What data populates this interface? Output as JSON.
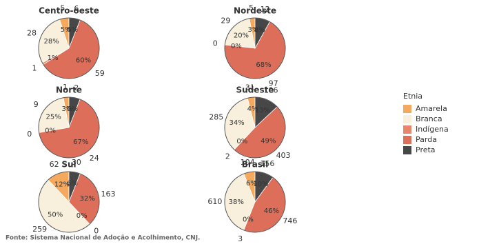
{
  "chart_data": [
    {
      "type": "pie",
      "title": "Centro-oeste",
      "categories": [
        "Amarela",
        "Branca",
        "Indígena",
        "Parda",
        "Preta"
      ],
      "colors": [
        "#f4a95e",
        "#f8f0dc",
        "#e8866c",
        "#dc6e5a",
        "#474747"
      ],
      "values": [
        5,
        28,
        1,
        60,
        6
      ],
      "value_labels": [
        "5%",
        "28%",
        "1%",
        "60%",
        "6%"
      ],
      "counts": [
        5,
        28,
        1,
        59,
        6
      ]
    },
    {
      "type": "pie",
      "title": "Nordeste",
      "categories": [
        "Amarela",
        "Branca",
        "Indígena",
        "Parda",
        "Preta"
      ],
      "colors": [
        "#f4a95e",
        "#f8f0dc",
        "#e8866c",
        "#dc6e5a",
        "#474747"
      ],
      "values": [
        3,
        20,
        0,
        68,
        8
      ],
      "value_labels": [
        "3%",
        "20%",
        "0%",
        "68%",
        "8%"
      ],
      "counts": [
        5,
        29,
        0,
        97,
        12
      ]
    },
    {
      "type": "pie",
      "title": "Norte",
      "categories": [
        "Amarela",
        "Branca",
        "Indígena",
        "Parda",
        "Preta"
      ],
      "colors": [
        "#f4a95e",
        "#f8f0dc",
        "#e8866c",
        "#dc6e5a",
        "#474747"
      ],
      "values": [
        3,
        25,
        0,
        67,
        6
      ],
      "value_labels": [
        "3%",
        "25%",
        "0%",
        "67%",
        "6%"
      ],
      "counts": [
        1,
        9,
        0,
        24,
        2
      ]
    },
    {
      "type": "pie",
      "title": "Sudeste",
      "categories": [
        "Amarela",
        "Branca",
        "Indígena",
        "Parda",
        "Preta"
      ],
      "colors": [
        "#f4a95e",
        "#f8f0dc",
        "#e8866c",
        "#dc6e5a",
        "#474747"
      ],
      "values": [
        4,
        34,
        0,
        49,
        13
      ],
      "value_labels": [
        "4%",
        "34%",
        "0%",
        "49%",
        "13%"
      ],
      "counts": [
        31,
        285,
        2,
        403,
        106
      ]
    },
    {
      "type": "pie",
      "title": "Sul",
      "categories": [
        "Amarela",
        "Branca",
        "Indígena",
        "Parda",
        "Preta"
      ],
      "colors": [
        "#f4a95e",
        "#f8f0dc",
        "#e8866c",
        "#dc6e5a",
        "#474747"
      ],
      "values": [
        12,
        50,
        0,
        32,
        6
      ],
      "value_labels": [
        "12%",
        "50%",
        "0%",
        "32%",
        "6%"
      ],
      "counts": [
        62,
        259,
        0,
        163,
        30
      ]
    },
    {
      "type": "pie",
      "title": "Brasil",
      "categories": [
        "Amarela",
        "Branca",
        "Indígena",
        "Parda",
        "Preta"
      ],
      "colors": [
        "#f4a95e",
        "#f8f0dc",
        "#e8866c",
        "#dc6e5a",
        "#474747"
      ],
      "values": [
        6,
        38,
        0,
        46,
        10
      ],
      "value_labels": [
        "6%",
        "38%",
        "0%",
        "46%",
        "10%"
      ],
      "counts": [
        104,
        610,
        3,
        746,
        156
      ]
    }
  ],
  "legend": {
    "title": "Etnia",
    "position": "right"
  },
  "source": "Fonte: Sistema Nacional de Adoção e Acolhimento, CNJ."
}
